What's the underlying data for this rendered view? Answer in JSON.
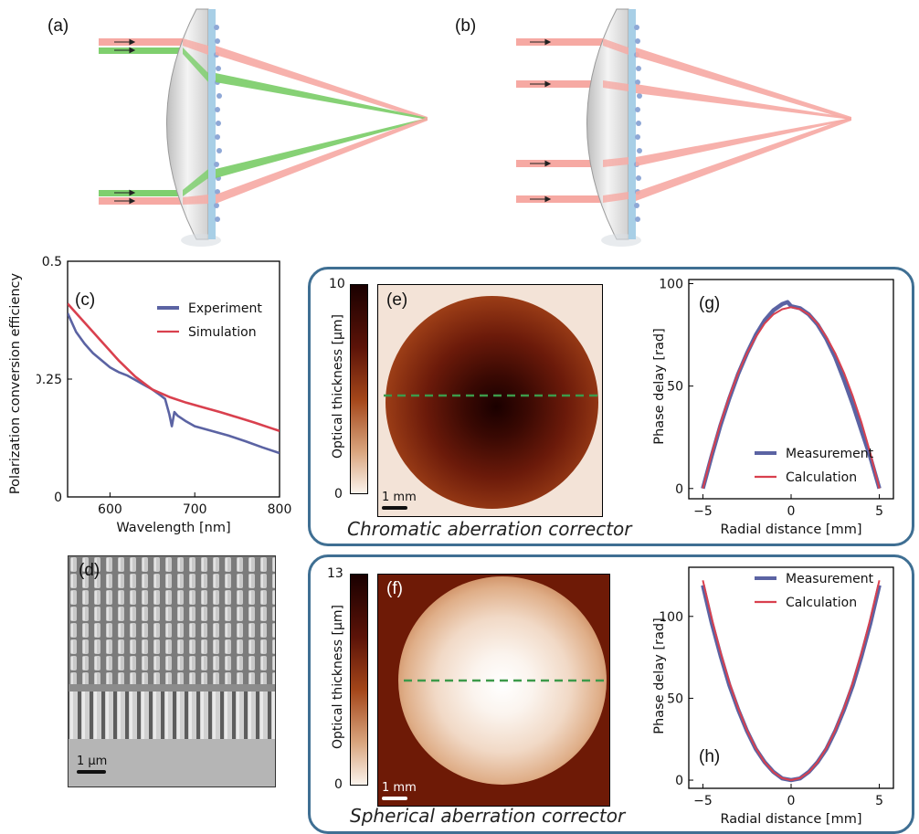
{
  "labels": {
    "a": "(a)",
    "b": "(b)",
    "c": "(c)",
    "d": "(d)",
    "e": "(e)",
    "f": "(f)",
    "g": "(g)",
    "h": "(h)"
  },
  "captions": {
    "chromatic": "Chromatic aberration corrector",
    "spherical": "Spherical aberration corrector"
  },
  "scale_bars": {
    "d": "1 µm",
    "e": "1 mm",
    "f": "1 mm"
  },
  "colors": {
    "box_border": "#3f6f93",
    "experiment": "#5b63a3",
    "simulation": "#d9404e",
    "green_ray": "#5fbf4f",
    "red_ray": "#f08c86",
    "dashed": "#3d9a4a"
  },
  "chart_data": [
    {
      "type": "line",
      "panel": "c",
      "xlabel": "Wavelength [nm]",
      "ylabel": "Polarization conversion efficiency",
      "xlim": [
        550,
        800
      ],
      "ylim": [
        0,
        0.5
      ],
      "x_ticks": [
        "600",
        "700",
        "800"
      ],
      "y_ticks": [
        "0",
        "0.25",
        "0.5"
      ],
      "legend": "top-right",
      "series": [
        {
          "name": "Experiment",
          "x": [
            550,
            560,
            570,
            580,
            590,
            600,
            610,
            620,
            630,
            640,
            650,
            660,
            665,
            670,
            673,
            676,
            680,
            690,
            700,
            720,
            740,
            760,
            780,
            800
          ],
          "y": [
            0.39,
            0.35,
            0.325,
            0.305,
            0.29,
            0.275,
            0.265,
            0.258,
            0.248,
            0.238,
            0.228,
            0.215,
            0.208,
            0.175,
            0.15,
            0.18,
            0.172,
            0.16,
            0.15,
            0.14,
            0.13,
            0.118,
            0.105,
            0.093
          ]
        },
        {
          "name": "Simulation",
          "x": [
            550,
            570,
            590,
            610,
            630,
            650,
            670,
            690,
            710,
            730,
            750,
            770,
            790,
            800
          ],
          "y": [
            0.41,
            0.37,
            0.33,
            0.29,
            0.255,
            0.228,
            0.212,
            0.2,
            0.19,
            0.18,
            0.169,
            0.158,
            0.146,
            0.14
          ]
        }
      ]
    },
    {
      "type": "heatmap",
      "panel": "e",
      "colorbar_label": "Optical thickness [µm]",
      "colorbar_ticks": [
        "0",
        "10"
      ],
      "colorbar_range": [
        0,
        10
      ]
    },
    {
      "type": "line",
      "panel": "g",
      "xlabel": "Radial distance [mm]",
      "ylabel": "Phase delay [rad]",
      "xlim": [
        -5.8,
        5.8
      ],
      "ylim": [
        -5,
        102
      ],
      "x_ticks": [
        "-5",
        "0",
        "5"
      ],
      "y_ticks": [
        "0",
        "50",
        "100"
      ],
      "legend": "bottom-center",
      "series": [
        {
          "name": "Measurement",
          "x": [
            -5,
            -4.5,
            -4,
            -3.5,
            -3,
            -2.5,
            -2,
            -1.5,
            -1,
            -0.5,
            -0.2,
            0,
            0.5,
            1,
            1.5,
            2,
            2.5,
            3,
            3.5,
            4,
            4.5,
            5
          ],
          "y": [
            0,
            16,
            31,
            44,
            56,
            66,
            75,
            82,
            87,
            90,
            91,
            89,
            88,
            85,
            80,
            73,
            64,
            53,
            41,
            28,
            15,
            0
          ]
        },
        {
          "name": "Calculation",
          "x": [
            -5,
            -4.5,
            -4,
            -3.5,
            -3,
            -2.5,
            -2,
            -1.5,
            -1,
            -0.5,
            0,
            0.5,
            1,
            1.5,
            2,
            2.5,
            3,
            3.5,
            4,
            4.5,
            5
          ],
          "y": [
            0,
            17,
            32,
            45,
            56.5,
            66,
            74,
            80.5,
            85,
            87.5,
            88.5,
            87.5,
            85,
            80.5,
            74,
            66,
            56.5,
            45,
            32,
            17,
            0
          ]
        }
      ]
    },
    {
      "type": "heatmap",
      "panel": "f",
      "colorbar_label": "Optical thickness [µm]",
      "colorbar_ticks": [
        "0",
        "13"
      ],
      "colorbar_range": [
        0,
        13
      ]
    },
    {
      "type": "line",
      "panel": "h",
      "xlabel": "Radial distance [mm]",
      "ylabel": "Phase delay [rad]",
      "xlim": [
        -5.8,
        5.8
      ],
      "ylim": [
        -5,
        130
      ],
      "x_ticks": [
        "-5",
        "0",
        "5"
      ],
      "y_ticks": [
        "0",
        "50",
        "100"
      ],
      "legend": "top-center",
      "series": [
        {
          "name": "Measurement",
          "x": [
            -5,
            -4.5,
            -4,
            -3.5,
            -3,
            -2.5,
            -2,
            -1.5,
            -1,
            -0.5,
            0,
            0.5,
            1,
            1.5,
            2,
            2.5,
            3,
            3.5,
            4,
            4.5,
            5
          ],
          "y": [
            119,
            96,
            76,
            58,
            43,
            30,
            19,
            11,
            5,
            1,
            0,
            1,
            5,
            11,
            19,
            30,
            43,
            58,
            76,
            96,
            119
          ]
        },
        {
          "name": "Calculation",
          "x": [
            -5,
            -4.5,
            -4,
            -3.5,
            -3,
            -2.5,
            -2,
            -1.5,
            -1,
            -0.5,
            0,
            0.5,
            1,
            1.5,
            2,
            2.5,
            3,
            3.5,
            4,
            4.5,
            5
          ],
          "y": [
            122,
            98.8,
            78,
            59.8,
            43.9,
            30.5,
            19.5,
            11,
            4.9,
            1.2,
            0,
            1.2,
            4.9,
            11,
            19.5,
            30.5,
            43.9,
            59.8,
            78,
            98.8,
            122
          ]
        }
      ]
    }
  ]
}
